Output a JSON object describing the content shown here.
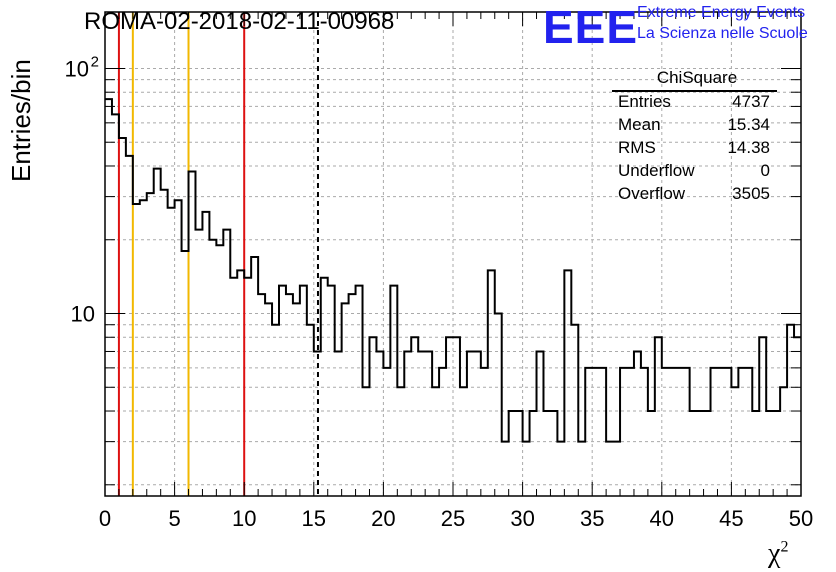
{
  "header": {
    "run_title": "ROMA-02-2018-02-11-00968",
    "logo_text": "EEE",
    "logo_line1": "Extreme Energy Events",
    "logo_line2": "La Scienza nelle Scuole",
    "logo_color": "#2222ee"
  },
  "stats_box": {
    "title": "ChiSquare",
    "rows": [
      {
        "label": "Entries",
        "value": "4737"
      },
      {
        "label": "Mean",
        "value": "15.34"
      },
      {
        "label": "RMS",
        "value": "14.38"
      },
      {
        "label": "Underflow",
        "value": "0"
      },
      {
        "label": "Overflow",
        "value": "3505"
      }
    ]
  },
  "chart_data": {
    "type": "histogram",
    "title": "ROMA-02-2018-02-11-00968",
    "xlabel": "χ",
    "xlabel_superscript": "2",
    "ylabel": "Entries/bin",
    "xlim": [
      0,
      50
    ],
    "ylim": [
      1.8,
      170
    ],
    "yscale": "log",
    "grid": true,
    "bin_width": 0.5,
    "x_ticks": [
      "0",
      "5",
      "10",
      "15",
      "20",
      "25",
      "30",
      "35",
      "40",
      "45",
      "50"
    ],
    "y_ticks": [
      {
        "value": 10,
        "label": "10",
        "exp": ""
      },
      {
        "value": 100,
        "label": "10",
        "exp": "2"
      }
    ],
    "counts": [
      75,
      65,
      52,
      44,
      28,
      29,
      31,
      39,
      32,
      27,
      29,
      18,
      38,
      22,
      26,
      20,
      19,
      22,
      14,
      15,
      14,
      17,
      12,
      11,
      9,
      13,
      12,
      11,
      13,
      9,
      7,
      14,
      13,
      7,
      11,
      12,
      13,
      5,
      8,
      7,
      6,
      13,
      5,
      7,
      8,
      7,
      7,
      5,
      6,
      8,
      8,
      5,
      7,
      7,
      6,
      15,
      10,
      3,
      4,
      4,
      3,
      4,
      7,
      4,
      4,
      3,
      15,
      9,
      3,
      6,
      6,
      6,
      3,
      3,
      6,
      6,
      7,
      6,
      4,
      8,
      6,
      6,
      6,
      6,
      4,
      4,
      4,
      6,
      6,
      6,
      5,
      6,
      6,
      4,
      8,
      4,
      4,
      5,
      9,
      8
    ],
    "vertical_lines": [
      {
        "x": 1,
        "color": "#dd1111",
        "style": "solid"
      },
      {
        "x": 2,
        "color": "#f2b800",
        "style": "solid"
      },
      {
        "x": 6,
        "color": "#f2b800",
        "style": "solid"
      },
      {
        "x": 10,
        "color": "#dd1111",
        "style": "solid"
      },
      {
        "x": 15.3,
        "color": "#000000",
        "style": "dashed"
      }
    ]
  }
}
